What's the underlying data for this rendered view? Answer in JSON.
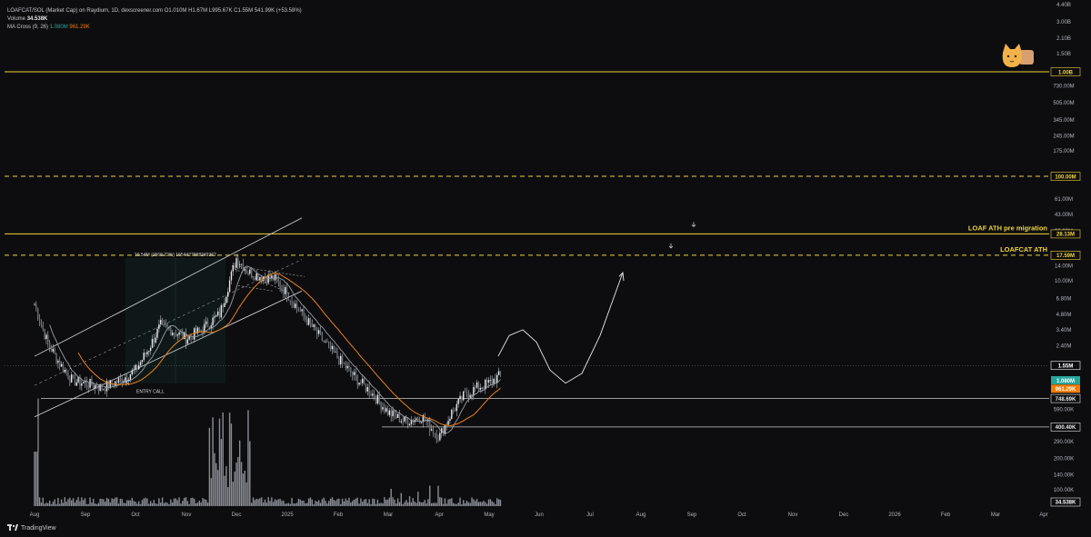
{
  "legend": {
    "title": "LOAFCAT/SOL (Market Cap) on Raydium, 1D, dexscreener.com",
    "ohlc": "O1.010M  H1.67M  L995.67K  C1.55M  541.99K (+53.58%)",
    "volume_label": "Volume",
    "volume_value": "34.538K",
    "ma_label": "MA Cross (9, 26)",
    "ma_fast": "1.080M",
    "ma_slow": "961.29K"
  },
  "brand": {
    "name": "TradingView"
  },
  "colors": {
    "background": "#0d0d0f",
    "yellow": "#f0d43a",
    "ma_slow": "#e8821e",
    "ma_fast": "#9aa0a6",
    "candle": "#b8bcc4",
    "volume": "#8a8d94",
    "price_tag": "#ffffff",
    "ma_fast_tag": "#26a69a",
    "ma_slow_tag": "#f57c00"
  },
  "chart_data": {
    "type": "candlestick",
    "symbol": "LOAFCAT/SOL (Market Cap)",
    "scale": "log",
    "x_ticks": [
      "Aug",
      "Sep",
      "Oct",
      "Nov",
      "Dec",
      "2025",
      "Feb",
      "Mar",
      "Apr",
      "May",
      "Jun",
      "Jul",
      "Aug",
      "Sep",
      "Oct",
      "Nov",
      "Dec",
      "2026",
      "Feb",
      "Mar",
      "Apr"
    ],
    "y_ticks": [
      "4.40B",
      "3.00B",
      "2.10B",
      "1.50B",
      "730.00M",
      "505.00M",
      "345.00M",
      "245.00M",
      "175.00M",
      "61.00M",
      "43.00M",
      "30.00M",
      "14.00M",
      "10.00M",
      "6.80M",
      "4.80M",
      "3.40M",
      "2.40M",
      "590.00K",
      "420.00K",
      "290.00K",
      "200.00K",
      "140.00K",
      "100.00K"
    ],
    "y_range": [
      70000,
      4400000000
    ],
    "price_path": [
      [
        "Aug",
        6000000.0
      ],
      [
        "Aug",
        2600000.0
      ],
      [
        "Aug",
        1600000.0
      ],
      [
        "Aug",
        1100000.0
      ],
      [
        "Sep",
        1050000.0
      ],
      [
        "Sep",
        950000.0
      ],
      [
        "Sep",
        1100000.0
      ],
      [
        "Oct",
        1400000.0
      ],
      [
        "Oct",
        2200000.0
      ],
      [
        "Oct",
        3800000.0
      ],
      [
        "Oct",
        3300000.0
      ],
      [
        "Nov",
        2800000.0
      ],
      [
        "Nov",
        3500000.0
      ],
      [
        "Nov",
        4800000.0
      ],
      [
        "Dec",
        16500000.0
      ],
      [
        "Dec",
        12000000.0
      ],
      [
        "Dec",
        11000000.0
      ],
      [
        "Dec",
        10500000.0
      ],
      [
        "2025",
        7500000.0
      ],
      [
        "2025",
        4500000.0
      ],
      [
        "2025",
        2800000.0
      ],
      [
        "Feb",
        1800000.0
      ],
      [
        "Feb",
        1200000.0
      ],
      [
        "Feb",
        850000.0
      ],
      [
        "Mar",
        550000.0
      ],
      [
        "Mar",
        450000.0
      ],
      [
        "Mar",
        500000.0
      ],
      [
        "Apr",
        320000.0
      ],
      [
        "Apr",
        550000.0
      ],
      [
        "Apr",
        800000.0
      ],
      [
        "Apr",
        950000.0
      ],
      [
        "May",
        1050000.0
      ],
      [
        "May",
        1550000.0
      ]
    ],
    "levels": [
      {
        "value": 1000000000,
        "label": "1.00B",
        "style": "solid"
      },
      {
        "value": 100000000,
        "label": "100.00M",
        "style": "dashed"
      },
      {
        "value": 28130000,
        "label": "28.13M",
        "style": "solid",
        "annotation": "LOAF ATH pre migration"
      },
      {
        "value": 17590000,
        "label": "17.59M",
        "style": "dashed",
        "annotation": "LOAFCAT ATH"
      },
      {
        "value": 748690,
        "label": "748.69K",
        "style": "solid-white"
      },
      {
        "value": 400400,
        "label": "400.40K",
        "style": "solid-white"
      }
    ],
    "tags": {
      "price": "1.55M",
      "ma_fast": "1.080M",
      "ma_slow": "961.29K",
      "volume": "34.538K"
    },
    "annotations": [
      {
        "text": "16.54M (1568.22%) 1654427998249262"
      },
      {
        "text": "ENTRY CALL"
      }
    ]
  }
}
